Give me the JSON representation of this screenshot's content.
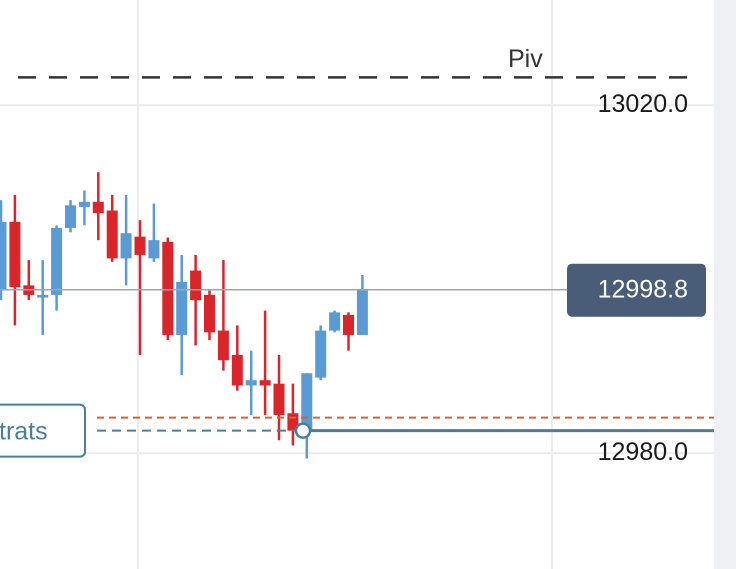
{
  "chart_data": {
    "type": "candlestick",
    "ylim": [
      12966.7,
      13032.1
    ],
    "yticks": [
      {
        "value": 13020,
        "label": "13020.0"
      },
      {
        "value": 12980,
        "label": "12980.0"
      }
    ],
    "grid": true,
    "up_color": "#5b9bd5",
    "down_color": "#d9262a",
    "candles": [
      {
        "open": 12998.7,
        "high": 13009.1,
        "low": 12997.6,
        "close": 13006.6
      },
      {
        "open": 13006.6,
        "high": 13009.7,
        "low": 12994.7,
        "close": 12999.1
      },
      {
        "open": 12999.3,
        "high": 13002.2,
        "low": 12997.6,
        "close": 12998.2
      },
      {
        "open": 12997.9,
        "high": 13002.2,
        "low": 12993.6,
        "close": 12998.2
      },
      {
        "open": 12998.2,
        "high": 13006.2,
        "low": 12996.4,
        "close": 13005.9
      },
      {
        "open": 13005.9,
        "high": 13009.1,
        "low": 13005.4,
        "close": 13008.5
      },
      {
        "open": 13008.3,
        "high": 13010.2,
        "low": 13006.2,
        "close": 13008.9
      },
      {
        "open": 13008.9,
        "high": 13012.3,
        "low": 13004.5,
        "close": 13007.6
      },
      {
        "open": 13007.9,
        "high": 13009.7,
        "low": 13002.0,
        "close": 13002.4
      },
      {
        "open": 13002.4,
        "high": 13009.7,
        "low": 12999.3,
        "close": 13005.3
      },
      {
        "open": 13004.9,
        "high": 13006.8,
        "low": 12991.3,
        "close": 13002.8
      },
      {
        "open": 13002.4,
        "high": 13008.7,
        "low": 13002.0,
        "close": 13004.5
      },
      {
        "open": 13004.3,
        "high": 13004.8,
        "low": 12993.0,
        "close": 12993.6
      },
      {
        "open": 12993.6,
        "high": 13002.8,
        "low": 12989.0,
        "close": 12999.7
      },
      {
        "open": 13001.0,
        "high": 13002.8,
        "low": 12992.4,
        "close": 12997.6
      },
      {
        "open": 12998.2,
        "high": 12998.7,
        "low": 12993.0,
        "close": 12993.9
      },
      {
        "open": 12994.1,
        "high": 13002.2,
        "low": 12989.5,
        "close": 12990.7
      },
      {
        "open": 12991.3,
        "high": 12994.7,
        "low": 12987.2,
        "close": 12987.8
      },
      {
        "open": 12987.8,
        "high": 12991.8,
        "low": 12984.4,
        "close": 12988.4
      },
      {
        "open": 12988.4,
        "high": 12996.4,
        "low": 12984.4,
        "close": 12987.8
      },
      {
        "open": 12988.0,
        "high": 12991.3,
        "low": 12981.5,
        "close": 12984.4
      },
      {
        "open": 12984.6,
        "high": 12988.0,
        "low": 12980.9,
        "close": 12982.6
      },
      {
        "open": 12982.6,
        "high": 12989.2,
        "low": 12979.4,
        "close": 12989.2
      },
      {
        "open": 12988.7,
        "high": 12994.7,
        "low": 12988.4,
        "close": 12994.1
      },
      {
        "open": 12994.1,
        "high": 12996.4,
        "low": 12993.9,
        "close": 12996.2
      },
      {
        "open": 12995.9,
        "high": 12996.2,
        "low": 12991.8,
        "close": 12993.6
      },
      {
        "open": 12993.6,
        "high": 13000.5,
        "low": 12993.6,
        "close": 12998.8
      }
    ],
    "current_price": {
      "value": 12998.8,
      "label": "12998.8"
    },
    "pivot": {
      "value": 13023.2,
      "label": "Piv"
    },
    "order_line": 12984.1,
    "strategy": {
      "value": 12982.6,
      "label": "trats"
    }
  }
}
